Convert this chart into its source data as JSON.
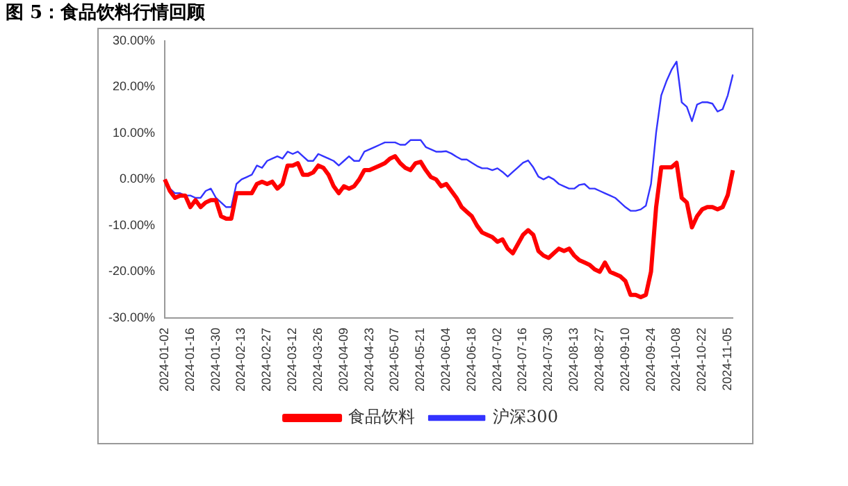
{
  "chart_data": {
    "type": "line",
    "title": "图 5：食品饮料行情回顾",
    "categories": [
      "2024-01-02",
      null,
      null,
      null,
      null,
      "2024-01-16",
      null,
      null,
      null,
      null,
      "2024-01-30",
      null,
      null,
      null,
      null,
      "2024-02-13",
      null,
      null,
      null,
      null,
      "2024-02-27",
      null,
      null,
      null,
      null,
      "2024-03-12",
      null,
      null,
      null,
      null,
      "2024-03-26",
      null,
      null,
      null,
      null,
      "2024-04-09",
      null,
      null,
      null,
      null,
      "2024-04-23",
      null,
      null,
      null,
      null,
      "2024-05-07",
      null,
      null,
      null,
      null,
      "2024-05-21",
      null,
      null,
      null,
      null,
      "2024-06-04",
      null,
      null,
      null,
      null,
      "2024-06-18",
      null,
      null,
      null,
      null,
      "2024-07-02",
      null,
      null,
      null,
      null,
      "2024-07-16",
      null,
      null,
      null,
      null,
      "2024-07-30",
      null,
      null,
      null,
      null,
      "2024-08-13",
      null,
      null,
      null,
      null,
      "2024-08-27",
      null,
      null,
      null,
      null,
      "2024-09-10",
      null,
      null,
      null,
      null,
      "2024-09-24",
      null,
      null,
      null,
      null,
      "2024-10-08",
      null,
      null,
      null,
      null,
      "2024-10-22",
      null,
      null,
      null,
      null,
      "2024-11-05",
      null
    ],
    "series": [
      {
        "name": "食品饮料",
        "color": "#ff0000",
        "values": [
          0,
          -2.5,
          -4,
          -3.5,
          -3.5,
          -6,
          -4.5,
          -6,
          -5,
          -4.5,
          -4.5,
          -8,
          -8.5,
          -8.5,
          -3,
          -3,
          -3,
          -3,
          -1,
          -0.5,
          -1,
          -0.5,
          -2,
          -1,
          3,
          3,
          3.5,
          1,
          1,
          1.5,
          3,
          2.5,
          1,
          -1.5,
          -3,
          -1.5,
          -2,
          -1.5,
          0,
          2,
          2,
          2.5,
          3,
          3.5,
          4.5,
          5,
          3.5,
          2.5,
          2,
          3.5,
          3.8,
          2,
          0.5,
          0,
          -1.5,
          -1,
          -2.5,
          -4,
          -6,
          -7,
          -8,
          -10,
          -11.5,
          -12,
          -12.5,
          -13.5,
          -13,
          -15,
          -16,
          -14,
          -12,
          -11,
          -12,
          -15.5,
          -16.5,
          -17,
          -16,
          -15,
          -15.5,
          -15,
          -16.5,
          -17.5,
          -18,
          -18.5,
          -19.5,
          -20,
          -18,
          -20,
          -20.5,
          -21,
          -22,
          -25,
          -25,
          -25.5,
          -25,
          -20,
          -6,
          2.6,
          2.6,
          2.6,
          3.6,
          -4,
          -5,
          -10.4,
          -8,
          -6.5,
          -6,
          -6,
          -6.5,
          -6,
          -3.4,
          2
        ]
      },
      {
        "name": "沪深300",
        "color": "#3333ff",
        "values": [
          0,
          -2,
          -3,
          -3,
          -3.5,
          -3.5,
          -4,
          -4,
          -2.5,
          -2,
          -4,
          -5,
          -6,
          -6,
          -1,
          0,
          0.5,
          1,
          3,
          2.5,
          4,
          4.5,
          5,
          4.5,
          6,
          5.5,
          6,
          5,
          4,
          4,
          5.5,
          5,
          4.5,
          4,
          3,
          4,
          5,
          4,
          4,
          6,
          6.5,
          7,
          7.5,
          8,
          8,
          8,
          7.5,
          7.5,
          8.5,
          8.5,
          8.5,
          7,
          6.5,
          6,
          6,
          6.1,
          5.6,
          4.9,
          4.3,
          4.3,
          3.6,
          2.9,
          2.4,
          2.4,
          2,
          2.4,
          1.6,
          0.6,
          1.6,
          2.6,
          3.6,
          4.1,
          2.6,
          0.6,
          0,
          0.6,
          0,
          -1,
          -1.5,
          -2,
          -2,
          -1.2,
          -1,
          -2,
          -2,
          -2.5,
          -3,
          -3.5,
          -4,
          -5,
          -6,
          -6.8,
          -6.8,
          -6.5,
          -5.7,
          -1,
          10.1,
          18.2,
          21.2,
          23.7,
          25.5,
          16.7,
          15.7,
          12.6,
          16.2,
          16.7,
          16.7,
          16.4,
          14.7,
          15.2,
          18.2,
          22.7
        ]
      }
    ],
    "ylim": [
      -30,
      30
    ],
    "yticks": [
      {
        "value": -30,
        "label": "-30.00%"
      },
      {
        "value": -20,
        "label": "-20.00%"
      },
      {
        "value": -10,
        "label": "-10.00%"
      },
      {
        "value": 0,
        "label": "0.00%"
      },
      {
        "value": 10,
        "label": "10.00%"
      },
      {
        "value": 20,
        "label": "20.00%"
      },
      {
        "value": 30,
        "label": "30.00%"
      }
    ],
    "grid": false,
    "legend": "bottom",
    "marker": "none",
    "line_style": "solid"
  }
}
